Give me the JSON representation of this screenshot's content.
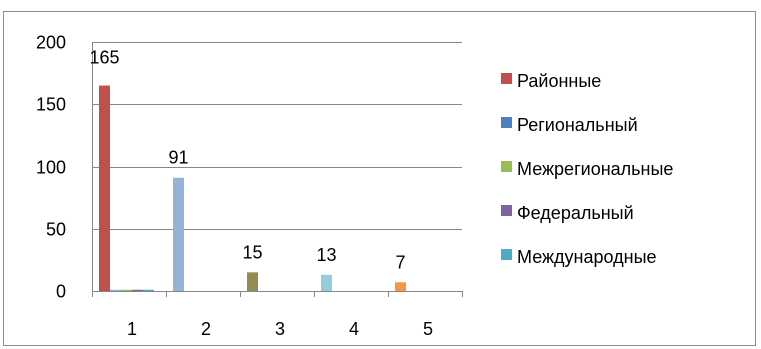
{
  "chart_data": {
    "type": "bar",
    "categories": [
      "1",
      "2",
      "3",
      "4",
      "5"
    ],
    "series": [
      {
        "name": "Районные",
        "values": [
          165,
          0,
          0,
          0,
          0
        ]
      },
      {
        "name": "Региональный",
        "values": [
          1,
          91,
          0,
          0,
          0
        ]
      },
      {
        "name": "Межрегиональные",
        "values": [
          1,
          0,
          0,
          0,
          0
        ]
      },
      {
        "name": "Федеральный",
        "values": [
          1,
          0,
          0,
          0,
          0
        ]
      },
      {
        "name": "Международные",
        "values": [
          1,
          0,
          0,
          0,
          0
        ]
      }
    ],
    "category_extra_bars": [
      {
        "category": "3",
        "value": 15,
        "color": "#948A54"
      },
      {
        "category": "4",
        "value": 13,
        "color": "#93CDDD"
      },
      {
        "category": "5",
        "value": 7,
        "color": "#F79646"
      }
    ],
    "data_labels": [
      {
        "category": "1",
        "text": "165"
      },
      {
        "category": "2",
        "text": "91"
      },
      {
        "category": "3",
        "text": "15"
      },
      {
        "category": "4",
        "text": "13"
      },
      {
        "category": "5",
        "text": "7"
      }
    ],
    "colors": [
      "#C0504D",
      "#95B3D7",
      "#9BBB59",
      "#8064A2",
      "#4BACC6"
    ],
    "legend_colors": [
      "#C0504D",
      "#4F81BD",
      "#9BBB59",
      "#8064A2",
      "#4BACC6"
    ],
    "ylim": [
      0,
      200
    ],
    "yticks": [
      0,
      50,
      100,
      150,
      200
    ],
    "grid": true,
    "legend_position": "right",
    "title": "",
    "xlabel": "",
    "ylabel": ""
  }
}
